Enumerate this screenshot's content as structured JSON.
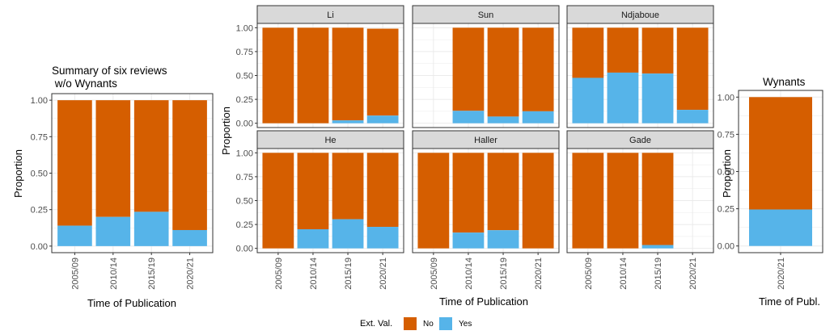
{
  "chart_data": [
    {
      "type": "bar",
      "stacked": true,
      "title_lines": [
        "Summary of six reviews",
        " w/o Wynants"
      ],
      "xlabel": "Time of Publication",
      "ylabel": "Proportion",
      "categories": [
        "2005/09",
        "2010/14",
        "2015/19",
        "2020/21"
      ],
      "ylim": [
        0,
        1
      ],
      "yticks": [
        "0.00",
        "0.25",
        "0.50",
        "0.75",
        "1.00"
      ],
      "series": [
        {
          "name": "Yes",
          "values": [
            0.14,
            0.2,
            0.235,
            0.11
          ]
        },
        {
          "name": "No",
          "values": [
            0.86,
            0.8,
            0.765,
            0.89
          ]
        }
      ],
      "grid": true
    },
    {
      "type": "bar",
      "stacked": true,
      "faceted": true,
      "xlabel": "Time of Publication",
      "ylabel": "Proportion",
      "categories": [
        "2005/09",
        "2010/14",
        "2015/19",
        "2020/21"
      ],
      "ylim": [
        0,
        1
      ],
      "yticks": [
        "0.00",
        "0.25",
        "0.50",
        "0.75",
        "1.00"
      ],
      "grid": true,
      "facets": [
        {
          "name": "Li",
          "yes": [
            0,
            0,
            0.03,
            0.08
          ],
          "no": [
            1,
            1,
            0.97,
            0.91
          ]
        },
        {
          "name": "Sun",
          "yes": [
            null,
            0.13,
            0.07,
            0.125
          ],
          "no": [
            null,
            0.87,
            0.93,
            0.875
          ]
        },
        {
          "name": "Ndjaboue",
          "yes": [
            0.475,
            0.53,
            0.52,
            0.14
          ],
          "no": [
            0.525,
            0.47,
            0.48,
            0.86
          ]
        },
        {
          "name": "He",
          "yes": [
            0,
            0.2,
            0.305,
            0.225
          ],
          "no": [
            1,
            0.8,
            0.695,
            0.775
          ]
        },
        {
          "name": "Haller",
          "yes": [
            0,
            0.165,
            0.19,
            0
          ],
          "no": [
            1,
            0.835,
            0.81,
            1
          ]
        },
        {
          "name": "Gade",
          "yes": [
            0,
            0,
            0.035,
            null
          ],
          "no": [
            1,
            1,
            0.965,
            null
          ]
        }
      ]
    },
    {
      "type": "bar",
      "stacked": true,
      "title": "Wynants",
      "xlabel": "Time of Publ.",
      "ylabel": "Proportion",
      "categories": [
        "2020/21"
      ],
      "ylim": [
        0,
        1
      ],
      "yticks": [
        "0.00",
        "0.25",
        "0.50",
        "0.75",
        "1.00"
      ],
      "series": [
        {
          "name": "Yes",
          "values": [
            0.245
          ]
        },
        {
          "name": "No",
          "values": [
            0.755
          ]
        }
      ],
      "grid": true
    }
  ],
  "legend": {
    "title": "Ext. Val.",
    "entries": [
      {
        "label": "No",
        "color": "#D55E00"
      },
      {
        "label": "Yes",
        "color": "#56B4E9"
      }
    ],
    "placement": "bottom"
  },
  "colors": {
    "no": "#D55E00",
    "yes": "#56B4E9",
    "grid": "#ebebeb",
    "strip": "#d9d9d9"
  }
}
